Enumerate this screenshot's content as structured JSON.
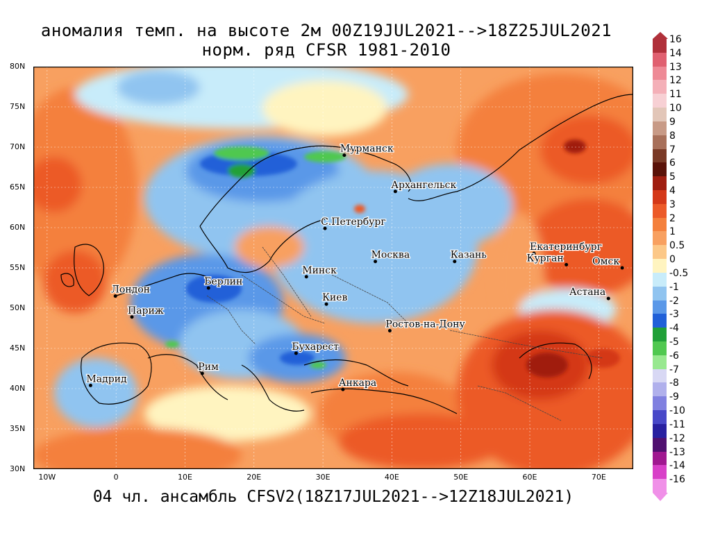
{
  "title_line1": "аномалия темп. на высоте 2м 00Z19JUL2021-->18Z25JUL2021",
  "title_line2": "норм. ряд CFSR 1981-2010",
  "footer": "04 чл. ансамбль CFSV2(18Z17JUL2021-->12Z18JUL2021)",
  "lat_ticks": [
    "80N",
    "75N",
    "70N",
    "65N",
    "60N",
    "55N",
    "50N",
    "45N",
    "40N",
    "35N",
    "30N"
  ],
  "lon_ticks": [
    "10W",
    "0",
    "10E",
    "20E",
    "30E",
    "40E",
    "50E",
    "60E",
    "70E"
  ],
  "colorbar": [
    {
      "label": "16",
      "color": "#b0303a"
    },
    {
      "label": "14",
      "color": "#e06070"
    },
    {
      "label": "13",
      "color": "#ee8a96"
    },
    {
      "label": "12",
      "color": "#f4b0b8"
    },
    {
      "label": "11",
      "color": "#f7d0d4"
    },
    {
      "label": "10",
      "color": "#e2c6b8"
    },
    {
      "label": "9",
      "color": "#c89a86"
    },
    {
      "label": "8",
      "color": "#a8705a"
    },
    {
      "label": "7",
      "color": "#7a3a26"
    },
    {
      "label": "6",
      "color": "#5a1208"
    },
    {
      "label": "5",
      "color": "#a01e10"
    },
    {
      "label": "4",
      "color": "#d43818"
    },
    {
      "label": "3",
      "color": "#ec5a28"
    },
    {
      "label": "2",
      "color": "#f4803c"
    },
    {
      "label": "1",
      "color": "#f8a060"
    },
    {
      "label": "0.5",
      "color": "#fcc888"
    },
    {
      "label": "0",
      "color": "#fff4c0"
    },
    {
      "label": "-0.5",
      "color": "#c8ecfa"
    },
    {
      "label": "-1",
      "color": "#90c4f0"
    },
    {
      "label": "-2",
      "color": "#5a98e8"
    },
    {
      "label": "-3",
      "color": "#2060d8"
    },
    {
      "label": "-4",
      "color": "#20a038"
    },
    {
      "label": "-5",
      "color": "#50c850"
    },
    {
      "label": "-6",
      "color": "#98e890"
    },
    {
      "label": "-7",
      "color": "#d8d8f4"
    },
    {
      "label": "-8",
      "color": "#b0b0ec"
    },
    {
      "label": "-9",
      "color": "#8080e0"
    },
    {
      "label": "-10",
      "color": "#4848c8"
    },
    {
      "label": "-11",
      "color": "#2820a0"
    },
    {
      "label": "-12",
      "color": "#501070"
    },
    {
      "label": "-13",
      "color": "#a01890"
    },
    {
      "label": "-14",
      "color": "#d840c8"
    },
    {
      "label": "-16",
      "color": "#f090e8"
    }
  ],
  "cities": [
    {
      "name": "Мурманск",
      "lon": 33.1,
      "lat": 69.0
    },
    {
      "name": "Архангельск",
      "lon": 40.5,
      "lat": 64.5
    },
    {
      "name": "С.Петербург",
      "lon": 30.3,
      "lat": 59.9
    },
    {
      "name": "Москва",
      "lon": 37.6,
      "lat": 55.8
    },
    {
      "name": "Казань",
      "lon": 49.1,
      "lat": 55.8
    },
    {
      "name": "Екатеринбург",
      "lon": 60.6,
      "lat": 56.8
    },
    {
      "name": "Курган",
      "lon": 65.3,
      "lat": 55.4
    },
    {
      "name": "Омск",
      "lon": 73.4,
      "lat": 55.0
    },
    {
      "name": "Астана",
      "lon": 71.4,
      "lat": 51.2
    },
    {
      "name": "Минск",
      "lon": 27.6,
      "lat": 53.9
    },
    {
      "name": "Киев",
      "lon": 30.5,
      "lat": 50.5
    },
    {
      "name": "Берлин",
      "lon": 13.4,
      "lat": 52.5
    },
    {
      "name": "Лондон",
      "lon": -0.1,
      "lat": 51.5
    },
    {
      "name": "Париж",
      "lon": 2.3,
      "lat": 48.9
    },
    {
      "name": "Ростов-на-Дону",
      "lon": 39.7,
      "lat": 47.2
    },
    {
      "name": "Бухарест",
      "lon": 26.1,
      "lat": 44.4
    },
    {
      "name": "Рим",
      "lon": 12.5,
      "lat": 41.9
    },
    {
      "name": "Мадрид",
      "lon": -3.7,
      "lat": 40.4
    },
    {
      "name": "Анкара",
      "lon": 32.9,
      "lat": 39.9
    }
  ]
}
